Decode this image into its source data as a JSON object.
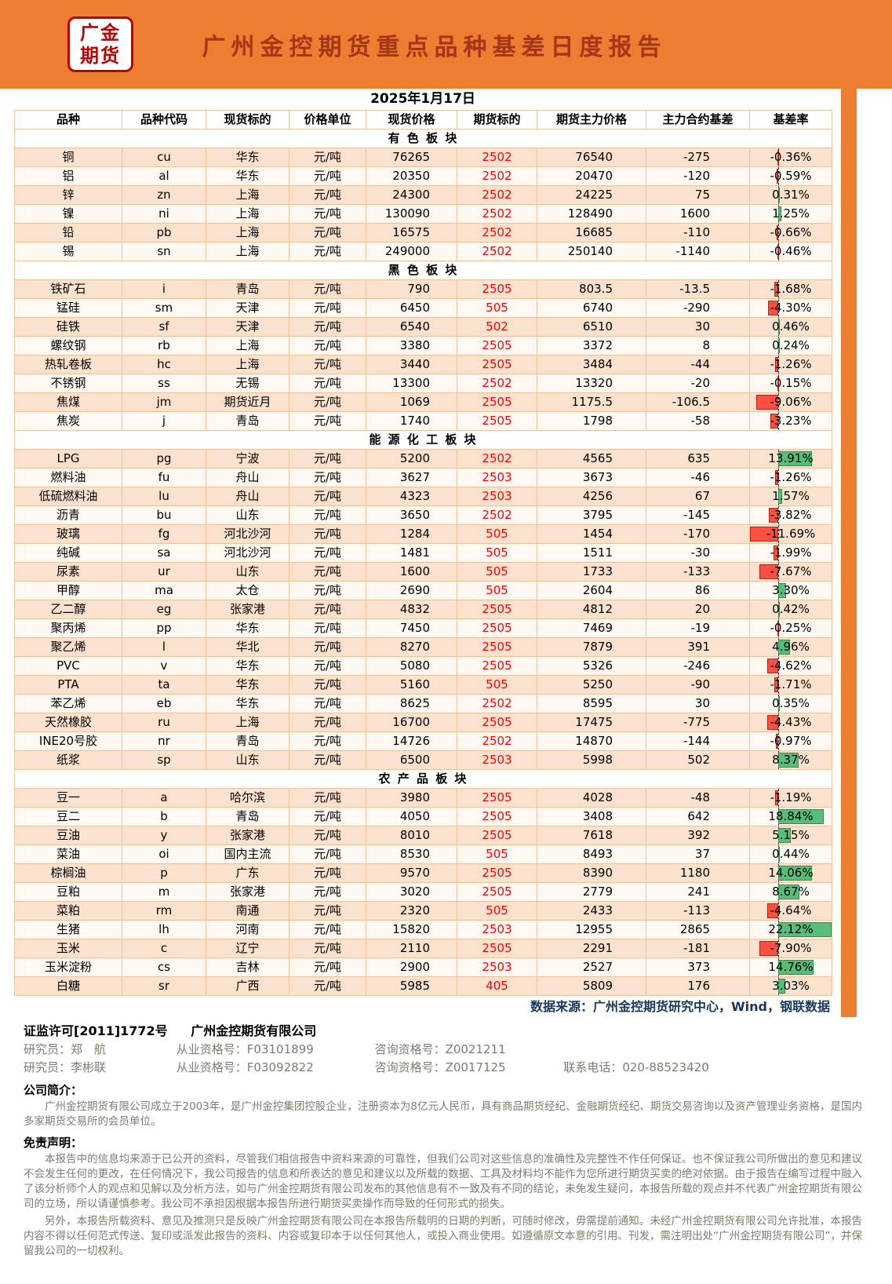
{
  "theme": {
    "header_orange": "#ED7D31",
    "title_red": "#A6361A",
    "logo_red": "#C00000",
    "band_a": "#FBE2CE",
    "band_b": "#FEF8F3",
    "grid": "#EDC39E",
    "bar_pos": "#57BE7A",
    "bar_pos_border": "#2E8F52",
    "bar_neg": "#FF4F42",
    "bar_neg_border": "#BF1E08",
    "contract_red": "#FF0000",
    "source_blue": "#17375E",
    "grey": "#7F7B70"
  },
  "header": {
    "logo_line1": "广金",
    "logo_line2": "期货",
    "title": "广州金控期货重点品种基差日度报告"
  },
  "report": {
    "date": "2025年1月17日",
    "columns": [
      "品种",
      "品种代码",
      "现货标的",
      "价格单位",
      "现货价格",
      "期货标的",
      "期货主力价格",
      "主力合约基差",
      "基差率"
    ],
    "sections": [
      {
        "name": "有 色 板 块",
        "rows": [
          {
            "variety": "铜",
            "code": "cu",
            "spot_target": "华东",
            "unit": "元/吨",
            "spot_price": "76265",
            "contract": "2502",
            "futures_price": "76540",
            "basis": "-275",
            "basis_rate": "-0.36%"
          },
          {
            "variety": "铝",
            "code": "al",
            "spot_target": "华东",
            "unit": "元/吨",
            "spot_price": "20350",
            "contract": "2502",
            "futures_price": "20470",
            "basis": "-120",
            "basis_rate": "-0.59%"
          },
          {
            "variety": "锌",
            "code": "zn",
            "spot_target": "上海",
            "unit": "元/吨",
            "spot_price": "24300",
            "contract": "2502",
            "futures_price": "24225",
            "basis": "75",
            "basis_rate": "0.31%"
          },
          {
            "variety": "镍",
            "code": "ni",
            "spot_target": "上海",
            "unit": "元/吨",
            "spot_price": "130090",
            "contract": "2502",
            "futures_price": "128490",
            "basis": "1600",
            "basis_rate": "1.25%"
          },
          {
            "variety": "铅",
            "code": "pb",
            "spot_target": "上海",
            "unit": "元/吨",
            "spot_price": "16575",
            "contract": "2502",
            "futures_price": "16685",
            "basis": "-110",
            "basis_rate": "-0.66%"
          },
          {
            "variety": "锡",
            "code": "sn",
            "spot_target": "上海",
            "unit": "元/吨",
            "spot_price": "249000",
            "contract": "2502",
            "futures_price": "250140",
            "basis": "-1140",
            "basis_rate": "-0.46%"
          }
        ]
      },
      {
        "name": "黑 色 板 块",
        "rows": [
          {
            "variety": "铁矿石",
            "code": "i",
            "spot_target": "青岛",
            "unit": "元/吨",
            "spot_price": "790",
            "contract": "2505",
            "futures_price": "803.5",
            "basis": "-13.5",
            "basis_rate": "-1.68%"
          },
          {
            "variety": "锰硅",
            "code": "sm",
            "spot_target": "天津",
            "unit": "元/吨",
            "spot_price": "6450",
            "contract": "505",
            "futures_price": "6740",
            "basis": "-290",
            "basis_rate": "-4.30%"
          },
          {
            "variety": "硅铁",
            "code": "sf",
            "spot_target": "天津",
            "unit": "元/吨",
            "spot_price": "6540",
            "contract": "502",
            "futures_price": "6510",
            "basis": "30",
            "basis_rate": "0.46%"
          },
          {
            "variety": "螺纹钢",
            "code": "rb",
            "spot_target": "上海",
            "unit": "元/吨",
            "spot_price": "3380",
            "contract": "2505",
            "futures_price": "3372",
            "basis": "8",
            "basis_rate": "0.24%"
          },
          {
            "variety": "热轧卷板",
            "code": "hc",
            "spot_target": "上海",
            "unit": "元/吨",
            "spot_price": "3440",
            "contract": "2505",
            "futures_price": "3484",
            "basis": "-44",
            "basis_rate": "-1.26%"
          },
          {
            "variety": "不锈钢",
            "code": "ss",
            "spot_target": "无锡",
            "unit": "元/吨",
            "spot_price": "13300",
            "contract": "2502",
            "futures_price": "13320",
            "basis": "-20",
            "basis_rate": "-0.15%"
          },
          {
            "variety": "焦煤",
            "code": "jm",
            "spot_target": "期货近月",
            "unit": "元/吨",
            "spot_price": "1069",
            "contract": "2505",
            "futures_price": "1175.5",
            "basis": "-106.5",
            "basis_rate": "-9.06%"
          },
          {
            "variety": "焦炭",
            "code": "j",
            "spot_target": "青岛",
            "unit": "元/吨",
            "spot_price": "1740",
            "contract": "2505",
            "futures_price": "1798",
            "basis": "-58",
            "basis_rate": "-3.23%"
          }
        ]
      },
      {
        "name": "能 源 化 工 板 块",
        "rows": [
          {
            "variety": "LPG",
            "code": "pg",
            "spot_target": "宁波",
            "unit": "元/吨",
            "spot_price": "5200",
            "contract": "2502",
            "futures_price": "4565",
            "basis": "635",
            "basis_rate": "13.91%"
          },
          {
            "variety": "燃料油",
            "code": "fu",
            "spot_target": "舟山",
            "unit": "元/吨",
            "spot_price": "3627",
            "contract": "2503",
            "futures_price": "3673",
            "basis": "-46",
            "basis_rate": "-1.26%"
          },
          {
            "variety": "低硫燃料油",
            "code": "lu",
            "spot_target": "舟山",
            "unit": "元/吨",
            "spot_price": "4323",
            "contract": "2503",
            "futures_price": "4256",
            "basis": "67",
            "basis_rate": "1.57%"
          },
          {
            "variety": "沥青",
            "code": "bu",
            "spot_target": "山东",
            "unit": "元/吨",
            "spot_price": "3650",
            "contract": "2502",
            "futures_price": "3795",
            "basis": "-145",
            "basis_rate": "-3.82%"
          },
          {
            "variety": "玻璃",
            "code": "fg",
            "spot_target": "河北沙河",
            "unit": "元/吨",
            "spot_price": "1284",
            "contract": "505",
            "futures_price": "1454",
            "basis": "-170",
            "basis_rate": "-11.69%"
          },
          {
            "variety": "纯碱",
            "code": "sa",
            "spot_target": "河北沙河",
            "unit": "元/吨",
            "spot_price": "1481",
            "contract": "505",
            "futures_price": "1511",
            "basis": "-30",
            "basis_rate": "-1.99%"
          },
          {
            "variety": "尿素",
            "code": "ur",
            "spot_target": "山东",
            "unit": "元/吨",
            "spot_price": "1600",
            "contract": "505",
            "futures_price": "1733",
            "basis": "-133",
            "basis_rate": "-7.67%"
          },
          {
            "variety": "甲醇",
            "code": "ma",
            "spot_target": "太仓",
            "unit": "元/吨",
            "spot_price": "2690",
            "contract": "505",
            "futures_price": "2604",
            "basis": "86",
            "basis_rate": "3.30%"
          },
          {
            "variety": "乙二醇",
            "code": "eg",
            "spot_target": "张家港",
            "unit": "元/吨",
            "spot_price": "4832",
            "contract": "2505",
            "futures_price": "4812",
            "basis": "20",
            "basis_rate": "0.42%"
          },
          {
            "variety": "聚丙烯",
            "code": "pp",
            "spot_target": "华东",
            "unit": "元/吨",
            "spot_price": "7450",
            "contract": "2505",
            "futures_price": "7469",
            "basis": "-19",
            "basis_rate": "-0.25%"
          },
          {
            "variety": "聚乙烯",
            "code": "l",
            "spot_target": "华北",
            "unit": "元/吨",
            "spot_price": "8270",
            "contract": "2505",
            "futures_price": "7879",
            "basis": "391",
            "basis_rate": "4.96%"
          },
          {
            "variety": "PVC",
            "code": "v",
            "spot_target": "华东",
            "unit": "元/吨",
            "spot_price": "5080",
            "contract": "2505",
            "futures_price": "5326",
            "basis": "-246",
            "basis_rate": "-4.62%"
          },
          {
            "variety": "PTA",
            "code": "ta",
            "spot_target": "华东",
            "unit": "元/吨",
            "spot_price": "5160",
            "contract": "505",
            "futures_price": "5250",
            "basis": "-90",
            "basis_rate": "-1.71%"
          },
          {
            "variety": "苯乙烯",
            "code": "eb",
            "spot_target": "华东",
            "unit": "元/吨",
            "spot_price": "8625",
            "contract": "2502",
            "futures_price": "8595",
            "basis": "30",
            "basis_rate": "0.35%"
          },
          {
            "variety": "天然橡胶",
            "code": "ru",
            "spot_target": "上海",
            "unit": "元/吨",
            "spot_price": "16700",
            "contract": "2505",
            "futures_price": "17475",
            "basis": "-775",
            "basis_rate": "-4.43%"
          },
          {
            "variety": "INE20号胶",
            "code": "nr",
            "spot_target": "青岛",
            "unit": "元/吨",
            "spot_price": "14726",
            "contract": "2502",
            "futures_price": "14870",
            "basis": "-144",
            "basis_rate": "-0.97%"
          },
          {
            "variety": "纸浆",
            "code": "sp",
            "spot_target": "山东",
            "unit": "元/吨",
            "spot_price": "6500",
            "contract": "2503",
            "futures_price": "5998",
            "basis": "502",
            "basis_rate": "8.37%"
          }
        ]
      },
      {
        "name": "农 产 品 板 块",
        "rows": [
          {
            "variety": "豆一",
            "code": "a",
            "spot_target": "哈尔滨",
            "unit": "元/吨",
            "spot_price": "3980",
            "contract": "2505",
            "futures_price": "4028",
            "basis": "-48",
            "basis_rate": "-1.19%"
          },
          {
            "variety": "豆二",
            "code": "b",
            "spot_target": "青岛",
            "unit": "元/吨",
            "spot_price": "4050",
            "contract": "2505",
            "futures_price": "3408",
            "basis": "642",
            "basis_rate": "18.84%"
          },
          {
            "variety": "豆油",
            "code": "y",
            "spot_target": "张家港",
            "unit": "元/吨",
            "spot_price": "8010",
            "contract": "2505",
            "futures_price": "7618",
            "basis": "392",
            "basis_rate": "5.15%"
          },
          {
            "variety": "菜油",
            "code": "oi",
            "spot_target": "国内主流",
            "unit": "元/吨",
            "spot_price": "8530",
            "contract": "505",
            "futures_price": "8493",
            "basis": "37",
            "basis_rate": "0.44%"
          },
          {
            "variety": "棕榈油",
            "code": "p",
            "spot_target": "广东",
            "unit": "元/吨",
            "spot_price": "9570",
            "contract": "2505",
            "futures_price": "8390",
            "basis": "1180",
            "basis_rate": "14.06%"
          },
          {
            "variety": "豆粕",
            "code": "m",
            "spot_target": "张家港",
            "unit": "元/吨",
            "spot_price": "3020",
            "contract": "2505",
            "futures_price": "2779",
            "basis": "241",
            "basis_rate": "8.67%"
          },
          {
            "variety": "菜粕",
            "code": "rm",
            "spot_target": "南通",
            "unit": "元/吨",
            "spot_price": "2320",
            "contract": "505",
            "futures_price": "2433",
            "basis": "-113",
            "basis_rate": "-4.64%"
          },
          {
            "variety": "生猪",
            "code": "lh",
            "spot_target": "河南",
            "unit": "元/吨",
            "spot_price": "15820",
            "contract": "2503",
            "futures_price": "12955",
            "basis": "2865",
            "basis_rate": "22.12%"
          },
          {
            "variety": "玉米",
            "code": "c",
            "spot_target": "辽宁",
            "unit": "元/吨",
            "spot_price": "2110",
            "contract": "2505",
            "futures_price": "2291",
            "basis": "-181",
            "basis_rate": "-7.90%"
          },
          {
            "variety": "玉米淀粉",
            "code": "cs",
            "spot_target": "吉林",
            "unit": "元/吨",
            "spot_price": "2900",
            "contract": "2503",
            "futures_price": "2527",
            "basis": "373",
            "basis_rate": "14.76%"
          },
          {
            "variety": "白糖",
            "code": "sr",
            "spot_target": "广西",
            "unit": "元/吨",
            "spot_price": "5985",
            "contract": "405",
            "futures_price": "5809",
            "basis": "176",
            "basis_rate": "3.03%"
          }
        ]
      }
    ],
    "data_source": "数据来源：广州金控期货研究中心，Wind，钢联数据"
  },
  "footer": {
    "license_parts": [
      "证监许可[2011]1772号",
      "广州金控期货有限公司"
    ],
    "researcher_lines": [
      {
        "parts": [
          "研究员：郑　航",
          "从业资格号：F03101899",
          "咨询资格号：Z0021211",
          ""
        ]
      },
      {
        "parts": [
          "研究员：李彬联",
          "从业资格号：F03092822",
          "咨询资格号：Z0017125",
          "联系电话：020-88523420"
        ]
      }
    ],
    "company_intro_label": "公司简介：",
    "company_intro": "广州金控期货有限公司成立于2003年，是广州金控集团控股企业，注册资本为8亿元人民币，具有商品期货经纪、金融期货经纪、期货交易咨询以及资产管理业务资格，是国内多家期货交易所的会员单位。",
    "disclaimer_label": "免责声明：",
    "disclaimer_paragraphs": [
      "本报告中的信息均来源于已公开的资料，尽管我们相信报告中资料来源的可靠性，但我们公司对这些信息的准确性及完整性不作任何保证。也不保证我公司所做出的意见和建议不会发生任何的更改，在任何情况下，我公司报告的信息和所表达的意见和建议以及所载的数据、工具及材料均不能作为您所进行期货买卖的绝对依据。由于报告在编写过程中融入了该分析师个人的观点和见解以及分析方法，如与广州金控期货有限公司发布的其他信息有不一致及有不同的结论，未免发生疑问，本报告所载的观点并不代表广州金控期货有限公司的立场，所以请谨慎参考。我公司不承担因根据本报告所进行期货买卖操作而导致的任何形式的损失。",
      "另外，本报告所载资料、意见及推测只是反映广州金控期货有限公司在本报告所载明的日期的判断，可随时修改，毋需提前通知。未经广州金控期货有限公司允许批准，本报告内容不得以任何范式传送、复印或派发此报告的资料、内容或复印本于以任何其他人，或投入商业使用。如遵循原文本意的引用、刊发，需注明出处“广州金控期货有限公司”，并保留我公司的一切权利。"
    ]
  }
}
